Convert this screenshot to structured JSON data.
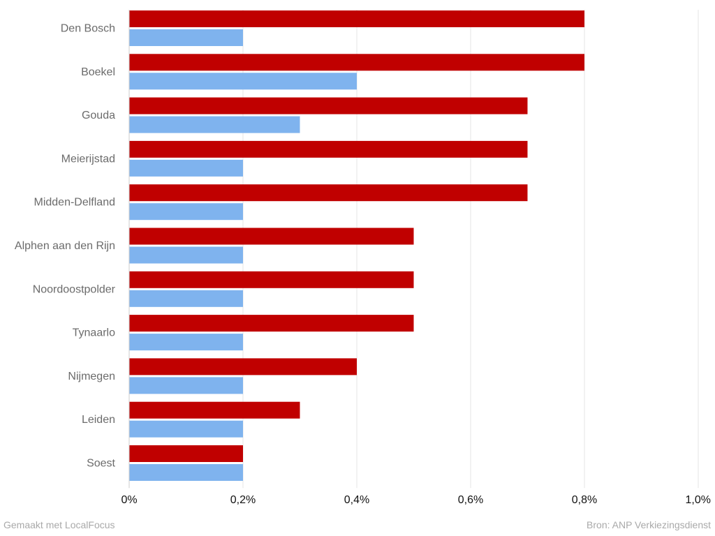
{
  "chart_data": {
    "type": "bar",
    "orientation": "horizontal",
    "categories": [
      "Den Bosch",
      "Boekel",
      "Gouda",
      "Meierijstad",
      "Midden-Delfland",
      "Alphen aan den Rijn",
      "Noordoostpolder",
      "Tynaarlo",
      "Nijmegen",
      "Leiden",
      "Soest"
    ],
    "series": [
      {
        "color": "#c00000",
        "values": [
          0.8,
          0.8,
          0.7,
          0.7,
          0.7,
          0.5,
          0.5,
          0.5,
          0.4,
          0.3,
          0.2
        ]
      },
      {
        "color": "#7fb3ee",
        "values": [
          0.2,
          0.4,
          0.3,
          0.2,
          0.2,
          0.2,
          0.2,
          0.2,
          0.2,
          0.2,
          0.2
        ]
      }
    ],
    "xlim": [
      0,
      1.0
    ],
    "xticks": [
      0,
      0.2,
      0.4,
      0.6,
      0.8,
      1.0
    ],
    "xtick_labels": [
      "0%",
      "0,2%",
      "0,4%",
      "0,6%",
      "0,8%",
      "1,0%"
    ],
    "grid": "vertical",
    "legend": "none"
  },
  "footer": {
    "left": "Gemaakt met LocalFocus",
    "right": "Bron: ANP Verkiezingsdienst"
  }
}
